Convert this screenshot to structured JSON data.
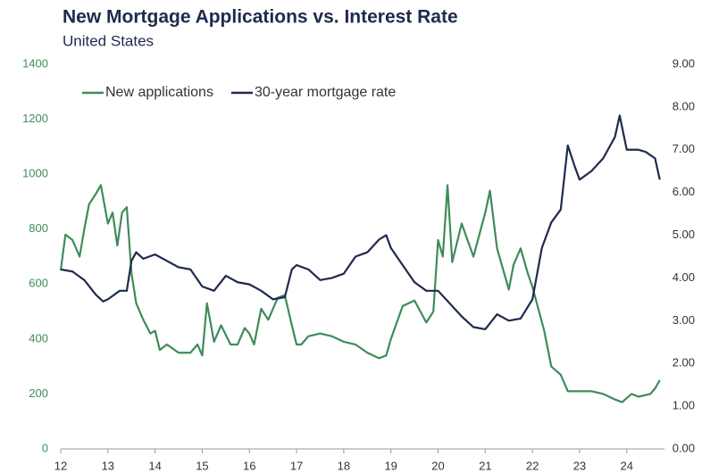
{
  "chart_data": {
    "type": "line",
    "title": "New Mortgage Applications vs. Interest Rate",
    "subtitle": "United States",
    "xlim": [
      12,
      24.8
    ],
    "xticks": [
      12,
      13,
      14,
      15,
      16,
      17,
      18,
      19,
      20,
      21,
      22,
      23,
      24
    ],
    "ylim": [
      0,
      1400
    ],
    "yticks": [
      0,
      200,
      400,
      600,
      800,
      1000,
      1200,
      1400
    ],
    "y2lim": [
      0,
      9
    ],
    "y2ticks": [
      {
        "value": 0,
        "label": "0.00"
      },
      {
        "value": 1,
        "label": "1.00"
      },
      {
        "value": 2,
        "label": "2.00"
      },
      {
        "value": 3,
        "label": "3.00"
      },
      {
        "value": 4,
        "label": "4.00"
      },
      {
        "value": 5,
        "label": "5.00"
      },
      {
        "value": 6,
        "label": "6.00"
      },
      {
        "value": 7,
        "label": "7.00"
      },
      {
        "value": 8,
        "label": "8.00"
      },
      {
        "value": 9,
        "label": "9.00"
      }
    ],
    "ytick_color": "#3d8c5a",
    "legend": "top-left",
    "series": [
      {
        "name": "New applications",
        "color": "#3d8c5a",
        "axis": "y",
        "x": [
          12.0,
          12.1,
          12.25,
          12.4,
          12.5,
          12.6,
          12.75,
          12.85,
          13.0,
          13.1,
          13.2,
          13.3,
          13.4,
          13.5,
          13.6,
          13.75,
          13.9,
          14.0,
          14.1,
          14.25,
          14.5,
          14.75,
          14.9,
          15.0,
          15.1,
          15.25,
          15.4,
          15.6,
          15.75,
          15.9,
          16.0,
          16.1,
          16.25,
          16.4,
          16.6,
          16.75,
          16.9,
          17.0,
          17.1,
          17.25,
          17.5,
          17.75,
          18.0,
          18.25,
          18.5,
          18.75,
          18.9,
          19.0,
          19.25,
          19.5,
          19.75,
          19.9,
          20.0,
          20.1,
          20.2,
          20.3,
          20.5,
          20.75,
          21.0,
          21.1,
          21.25,
          21.5,
          21.6,
          21.75,
          21.9,
          22.0,
          22.25,
          22.4,
          22.6,
          22.75,
          23.0,
          23.25,
          23.5,
          23.75,
          23.9,
          24.1,
          24.25,
          24.5,
          24.6,
          24.7
        ],
        "values": [
          650,
          780,
          760,
          700,
          800,
          890,
          930,
          960,
          820,
          860,
          740,
          860,
          880,
          640,
          530,
          470,
          420,
          430,
          360,
          380,
          350,
          350,
          380,
          340,
          530,
          390,
          450,
          380,
          380,
          440,
          420,
          380,
          510,
          470,
          550,
          560,
          450,
          380,
          380,
          410,
          420,
          410,
          390,
          380,
          350,
          330,
          340,
          400,
          520,
          540,
          460,
          500,
          760,
          700,
          960,
          680,
          820,
          700,
          860,
          940,
          730,
          580,
          670,
          730,
          640,
          590,
          430,
          300,
          270,
          210,
          210,
          210,
          200,
          180,
          170,
          200,
          190,
          200,
          220,
          250
        ]
      },
      {
        "name": "30-year mortgage rate",
        "color": "#1f2a4d",
        "axis": "y2",
        "x": [
          12.0,
          12.25,
          12.5,
          12.75,
          12.9,
          13.0,
          13.25,
          13.4,
          13.5,
          13.6,
          13.75,
          14.0,
          14.25,
          14.5,
          14.75,
          15.0,
          15.25,
          15.5,
          15.75,
          16.0,
          16.25,
          16.5,
          16.75,
          16.9,
          17.0,
          17.25,
          17.5,
          17.75,
          18.0,
          18.25,
          18.5,
          18.75,
          18.9,
          19.0,
          19.25,
          19.5,
          19.75,
          20.0,
          20.25,
          20.5,
          20.75,
          21.0,
          21.25,
          21.5,
          21.75,
          22.0,
          22.2,
          22.4,
          22.6,
          22.75,
          22.9,
          23.0,
          23.25,
          23.5,
          23.75,
          23.85,
          24.0,
          24.25,
          24.4,
          24.6,
          24.7
        ],
        "values": [
          4.2,
          4.15,
          3.95,
          3.6,
          3.45,
          3.5,
          3.7,
          3.7,
          4.4,
          4.6,
          4.45,
          4.55,
          4.4,
          4.25,
          4.2,
          3.8,
          3.7,
          4.05,
          3.9,
          3.85,
          3.7,
          3.5,
          3.55,
          4.2,
          4.3,
          4.2,
          3.95,
          4.0,
          4.1,
          4.5,
          4.6,
          4.9,
          5.0,
          4.7,
          4.3,
          3.9,
          3.7,
          3.7,
          3.4,
          3.1,
          2.85,
          2.8,
          3.15,
          3.0,
          3.05,
          3.5,
          4.7,
          5.3,
          5.6,
          7.1,
          6.6,
          6.3,
          6.5,
          6.8,
          7.3,
          7.8,
          7.0,
          7.0,
          6.95,
          6.8,
          6.3
        ]
      }
    ]
  }
}
